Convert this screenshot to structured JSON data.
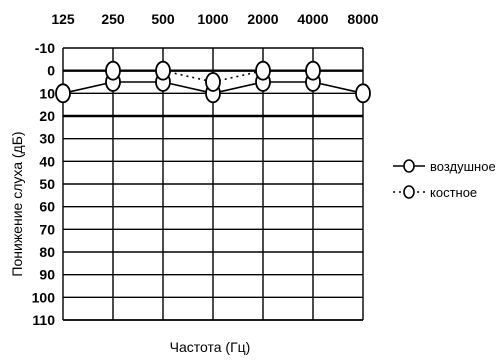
{
  "chart_data": {
    "type": "line",
    "x": [
      125,
      250,
      500,
      1000,
      2000,
      4000,
      8000
    ],
    "x_tick_labels": [
      "125",
      "250",
      "500",
      "1000",
      "2000",
      "4000",
      "8000"
    ],
    "y_tick_labels": [
      "-10",
      "0",
      "10",
      "20",
      "30",
      "40",
      "50",
      "60",
      "70",
      "80",
      "90",
      "100",
      "110"
    ],
    "xlabel": "Частота (Гц)",
    "ylabel": "Понижение слуха (дБ)",
    "ylim": [
      -10,
      110
    ],
    "y_inverted": true,
    "x_scale": "log",
    "x_axis_position": "top",
    "grid": true,
    "legend_position": "right",
    "series": [
      {
        "name": "воздушное",
        "line_style": "solid",
        "marker": "open-circle",
        "values": [
          10,
          5,
          5,
          10,
          5,
          5,
          10
        ]
      },
      {
        "name": "костное",
        "line_style": "dotted",
        "marker": "open-circle",
        "values": [
          null,
          0,
          0,
          5,
          0,
          0,
          null
        ]
      }
    ]
  },
  "colors": {
    "line": "#000000",
    "background": "#ffffff"
  }
}
